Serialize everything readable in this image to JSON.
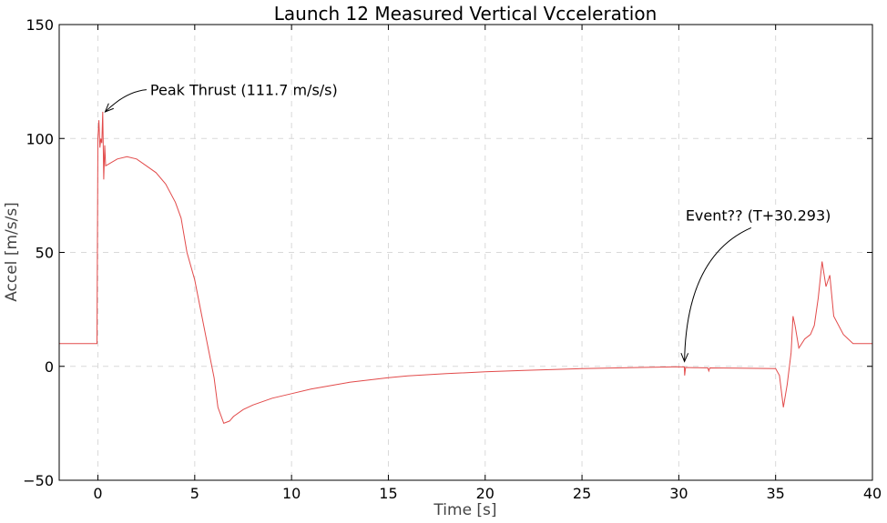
{
  "chart_data": {
    "type": "line",
    "title": "Launch 12 Measured Vertical Vcceleration",
    "xlabel": "Time [s]",
    "ylabel": "Accel [m/s/s]",
    "xlim": [
      -2,
      40
    ],
    "ylim": [
      -50,
      150
    ],
    "xticks": [
      0,
      5,
      10,
      15,
      20,
      25,
      30,
      35,
      40
    ],
    "yticks": [
      -50,
      0,
      50,
      100,
      150
    ],
    "xtick_labels": [
      "0",
      "5",
      "10",
      "15",
      "20",
      "25",
      "30",
      "35",
      "40"
    ],
    "ytick_labels": [
      "−50",
      "0",
      "50",
      "100",
      "150"
    ],
    "grid": true,
    "line_color": "#e24a4a",
    "series": [
      {
        "x": [
          -2,
          -0.05,
          0.0,
          0.05,
          0.1,
          0.15,
          0.2,
          0.25,
          0.3,
          0.35,
          0.4,
          0.6,
          1.0,
          1.5,
          2.0,
          2.5,
          3.0,
          3.5,
          4.0,
          4.3,
          4.6,
          5.0,
          5.3,
          5.6,
          6.0,
          6.2,
          6.5,
          6.8,
          7.0,
          7.5,
          8.0,
          9.0,
          10.0,
          11.0,
          12.0,
          13.0,
          14.0,
          15.0,
          16.0,
          18.0,
          20.0,
          22.0,
          25.0,
          28.0,
          30.0,
          30.29,
          30.3,
          30.35,
          31.0,
          31.5,
          31.55,
          31.6,
          33.0,
          35.0,
          35.2,
          35.4,
          35.6,
          35.8,
          35.9,
          36.0,
          36.2,
          36.5,
          36.8,
          37.0,
          37.2,
          37.4,
          37.6,
          37.8,
          38.0,
          38.5,
          39.0,
          39.5,
          40.0
        ],
        "y": [
          10,
          10,
          100,
          108,
          96,
          100,
          98,
          111.7,
          82,
          97,
          88,
          89,
          91,
          92,
          91,
          88,
          85,
          80,
          72,
          65,
          50,
          38,
          25,
          12,
          -5,
          -18,
          -25,
          -24,
          -22,
          -19,
          -17,
          -14,
          -12,
          -10,
          -8.5,
          -7,
          -6,
          -5,
          -4.2,
          -3.2,
          -2.4,
          -1.8,
          -1,
          -0.5,
          -0.2,
          -0.3,
          -4,
          -0.5,
          -0.6,
          -0.7,
          -2,
          -0.7,
          -0.8,
          -1,
          -4,
          -18,
          -8,
          6,
          22,
          18,
          8,
          12,
          14,
          18,
          30,
          46,
          35,
          40,
          22,
          14,
          10,
          10,
          10
        ]
      }
    ],
    "annotations": [
      {
        "text": "Peak Thrust (111.7 m/s/s)",
        "x": 0.28,
        "y": 111.7,
        "text_x": 2.7,
        "text_y": 119
      },
      {
        "text": "Event?? (T+30.293)",
        "x": 30.293,
        "y": 0.5,
        "text_x": 30.35,
        "text_y": 64
      }
    ]
  }
}
